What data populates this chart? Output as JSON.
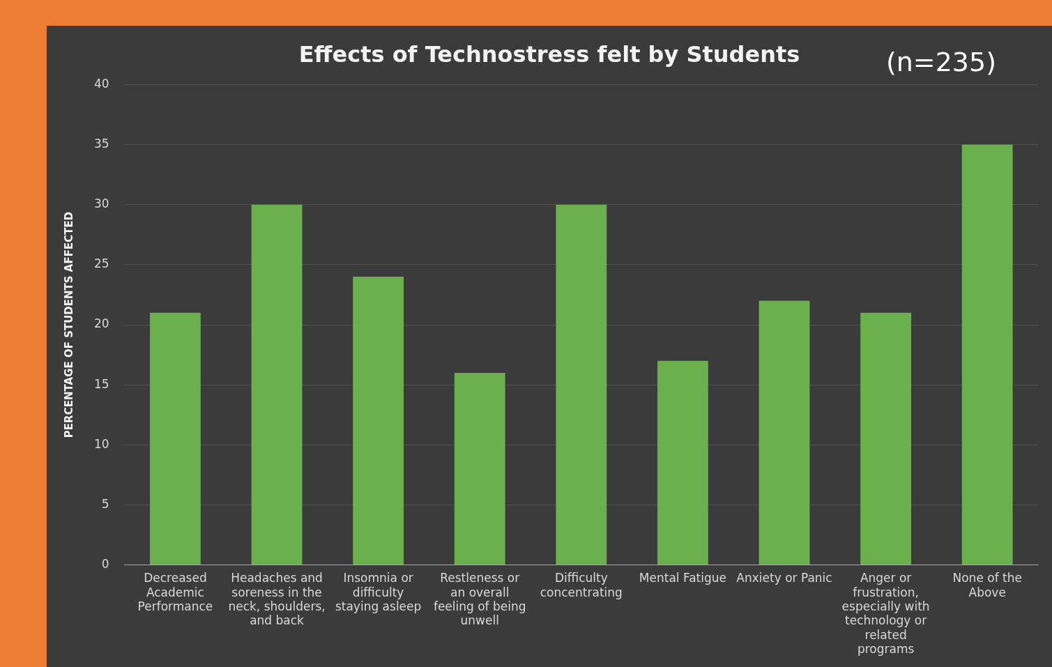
{
  "chart_data": {
    "type": "bar",
    "title": "Effects of Technostress felt by Students",
    "annotations": [
      "(n=235)"
    ],
    "ylabel": "PERCENTAGE OF STUDENTS AFFECTED",
    "categories": [
      "Decreased Academic Performance",
      "Headaches and soreness in the neck, shoulders, and back",
      "Insomnia or difficulty staying asleep",
      "Restleness or an overall feeling of being unwell",
      "Difficulty concentrating",
      "Mental Fatigue",
      "Anxiety or Panic",
      "Anger or frustration, especially with technology or related programs",
      "None of the Above"
    ],
    "values": [
      21,
      30,
      24,
      16,
      30,
      17,
      22,
      21,
      35
    ],
    "color": "#6ab04c",
    "ylim": [
      0,
      40
    ],
    "yticks": [
      0,
      5,
      10,
      15,
      20,
      25,
      30,
      35,
      40
    ],
    "grid": "y",
    "legend": false
  }
}
